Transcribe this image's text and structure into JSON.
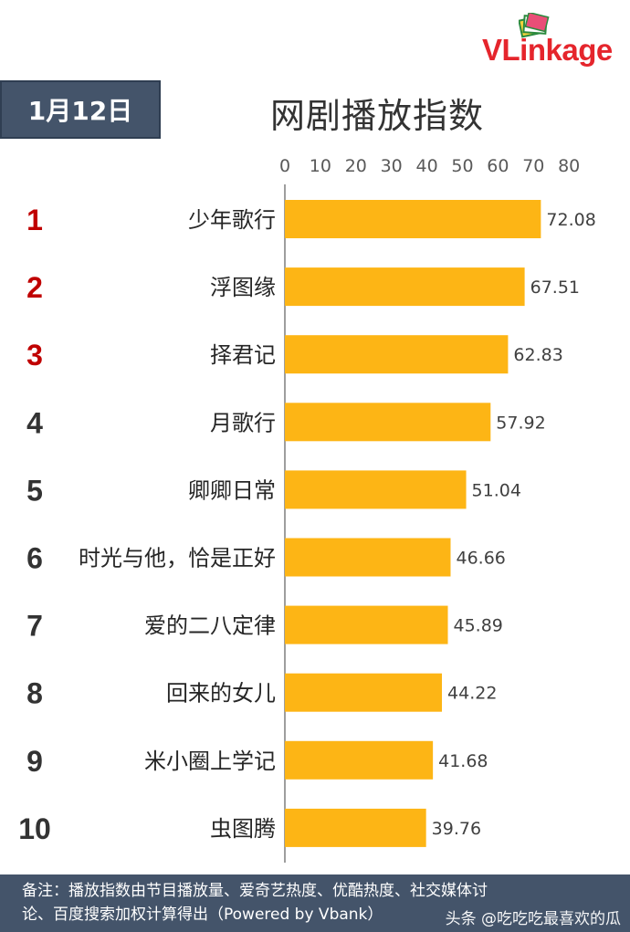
{
  "logo": {
    "text_v": "V",
    "text_rest": "Linkage"
  },
  "date_label": "1月12日",
  "chart_title": "网剧播放指数",
  "chart_data": {
    "type": "bar",
    "orientation": "horizontal",
    "title": "网剧播放指数",
    "ranks": [
      "1",
      "2",
      "3",
      "4",
      "5",
      "6",
      "7",
      "8",
      "9",
      "10"
    ],
    "categories": [
      "少年歌行",
      "浮图缘",
      "择君记",
      "月歌行",
      "卿卿日常",
      "时光与他，恰是正好",
      "爱的二八定律",
      "回来的女儿",
      "米小圈上学记",
      "虫图腾"
    ],
    "values": [
      72.08,
      67.51,
      62.83,
      57.92,
      51.04,
      46.66,
      45.89,
      44.22,
      41.68,
      39.76
    ],
    "value_labels": [
      "72.08",
      "67.51",
      "62.83",
      "57.92",
      "51.04",
      "46.66",
      "45.89",
      "44.22",
      "41.68",
      "39.76"
    ],
    "x_ticks": [
      "0",
      "10",
      "20",
      "30",
      "40",
      "50",
      "60",
      "70",
      "80"
    ],
    "xlim": [
      0,
      80
    ],
    "grid": false,
    "bar_color": "#fdb515",
    "rank_highlight_color": "#c00000",
    "rank_color": "#333333"
  },
  "footer": {
    "line1": "备注：播放指数由节目播放量、爱奇艺热度、优酷热度、社交媒体讨",
    "line2": "论、百度搜索加权计算得出（Powered by Vbank）"
  },
  "watermark": "头条 @吃吃吃最喜欢的瓜"
}
